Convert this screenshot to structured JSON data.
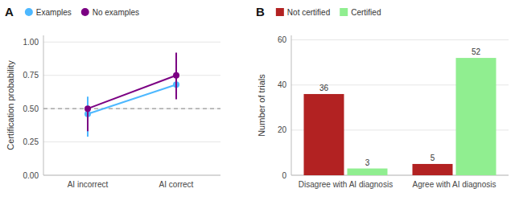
{
  "chart_data": [
    {
      "type": "line",
      "title": "A",
      "categories": [
        "AI incorrect",
        "AI correct"
      ],
      "series": [
        {
          "name": "Examples",
          "color": "#4db8ff",
          "values": [
            0.46,
            0.68
          ],
          "error_low": [
            0.17,
            0.1
          ],
          "error_high": [
            0.13,
            0.17
          ]
        },
        {
          "name": "No examples",
          "color": "#7b0083",
          "values": [
            0.5,
            0.75
          ],
          "error_low": [
            0.17,
            0.18
          ],
          "error_high": [
            0.01,
            0.17
          ]
        }
      ],
      "reference_y": 0.5,
      "ylabel": "Certification probability",
      "ylim": [
        0.0,
        1.05
      ],
      "yticks": [
        {
          "value": 0.0,
          "label": "0.00"
        },
        {
          "value": 0.25,
          "label": "0.25"
        },
        {
          "value": 0.5,
          "label": "0.50"
        },
        {
          "value": 0.75,
          "label": "0.75"
        },
        {
          "value": 1.0,
          "label": "1.00"
        }
      ],
      "marker": "circle",
      "line_style": "solid",
      "grid": true,
      "legend": "top"
    },
    {
      "type": "bar",
      "title": "B",
      "categories": [
        "Disagree with AI diagnosis",
        "Agree with AI diagnosis"
      ],
      "series": [
        {
          "name": "Not certified",
          "color": "#b22222",
          "values": [
            36,
            5
          ]
        },
        {
          "name": "Certified",
          "color": "#90ee90",
          "values": [
            3,
            52
          ]
        }
      ],
      "ylabel": "Number of trials",
      "ylim": [
        0,
        62
      ],
      "yticks": [
        0,
        20,
        40,
        60
      ],
      "data_labels": true,
      "grid": true,
      "legend": "top"
    }
  ]
}
